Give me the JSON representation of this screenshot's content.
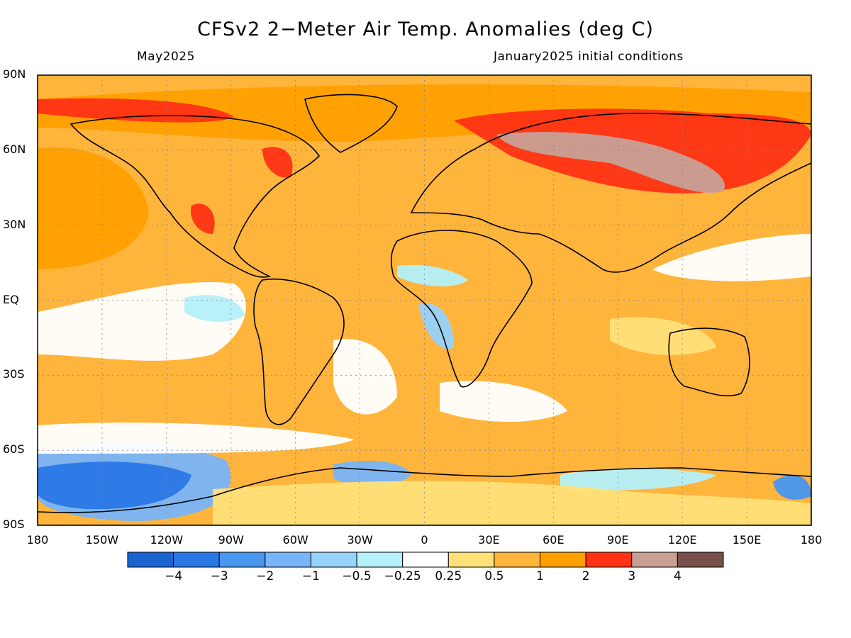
{
  "title": "CFSv2 2−Meter Air Temp. Anomalies (deg C)",
  "valid_month": "May2025",
  "initial_conditions": "January2025 initial conditions",
  "lat_labels": [
    "90N",
    "60N",
    "30N",
    "EQ",
    "30S",
    "60S",
    "90S"
  ],
  "lon_labels": [
    "180",
    "150W",
    "120W",
    "90W",
    "60W",
    "30W",
    "0",
    "30E",
    "60E",
    "90E",
    "120E",
    "150E",
    "180"
  ],
  "colorbar": {
    "labels": [
      "−4",
      "−3",
      "−2",
      "−1",
      "−0.5",
      "−0.25",
      "0.25",
      "0.5",
      "1",
      "2",
      "3",
      "4"
    ],
    "colors": [
      "#1a64d2",
      "#2a78e6",
      "#4896f0",
      "#78b4f8",
      "#96d2fa",
      "#b4f0fa",
      "#ffffff",
      "#ffe178",
      "#ffb43c",
      "#ffa000",
      "#ff3214",
      "#c8a096",
      "#78504b"
    ]
  },
  "map": {
    "projection": "cylindrical equidistant",
    "lon_range": [
      -180,
      180
    ],
    "lat_range": [
      -90,
      90
    ],
    "gridlines": "dotted every 30 degrees",
    "regions": [
      {
        "name": "background-warm",
        "color": "#ffb43c"
      },
      {
        "name": "siberia-warm",
        "color": "#ff3214"
      },
      {
        "name": "siberia-core",
        "color": "#c8a096"
      },
      {
        "name": "arctic-canada-warm",
        "color": "#ff3214"
      },
      {
        "name": "north-pacific-warm",
        "color": "#ffa000"
      },
      {
        "name": "equatorial-pacific-neutral",
        "color": "#ffffff"
      },
      {
        "name": "southern-ocean-cool",
        "color": "#78b4f8"
      },
      {
        "name": "antarctic-cool",
        "color": "#2a78e6"
      }
    ]
  }
}
